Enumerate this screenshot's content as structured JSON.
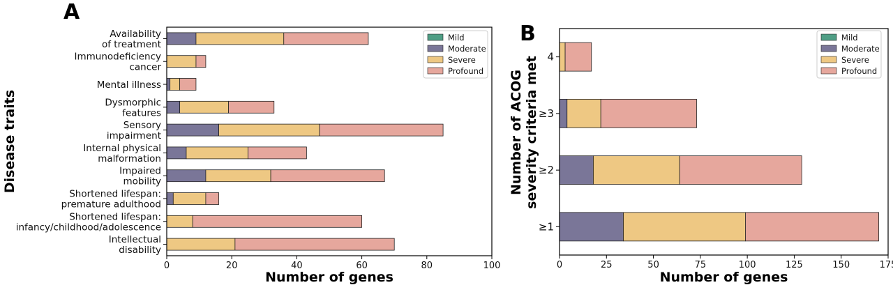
{
  "chart_data": [
    {
      "panel": "A",
      "type": "bar",
      "orientation": "horizontal",
      "stacked": true,
      "categories": [
        [
          "Availability",
          "of treatment"
        ],
        [
          "Immunodeficiency",
          "cancer"
        ],
        [
          "Mental illness"
        ],
        [
          "Dysmorphic",
          "features"
        ],
        [
          "Sensory",
          "impairment"
        ],
        [
          "Internal physical",
          "malformation"
        ],
        [
          "Impaired",
          "mobility"
        ],
        [
          "Shortened lifespan:",
          "premature adulthood"
        ],
        [
          "Shortened lifespan:",
          "infancy/childhood/adolescence"
        ],
        [
          "Intellectual",
          "disability"
        ]
      ],
      "series": [
        {
          "name": "Mild",
          "color": "#4f9e85",
          "values": [
            0,
            0,
            0,
            0,
            0,
            0,
            0,
            0,
            0,
            0
          ]
        },
        {
          "name": "Moderate",
          "color": "#7a7698",
          "values": [
            9,
            0,
            1,
            4,
            16,
            6,
            12,
            2,
            0,
            0
          ]
        },
        {
          "name": "Severe",
          "color": "#eec883",
          "values": [
            27,
            9,
            3,
            15,
            31,
            19,
            20,
            10,
            8,
            21
          ]
        },
        {
          "name": "Profound",
          "color": "#e6a79d",
          "values": [
            26,
            3,
            5,
            14,
            38,
            18,
            35,
            4,
            52,
            49
          ]
        }
      ],
      "xlabel": "Number of genes",
      "ylabel": "Disease traits",
      "xlim": [
        0,
        100
      ],
      "xticks": [
        0,
        20,
        40,
        60,
        80,
        100
      ],
      "legend": "top-right",
      "grid": false
    },
    {
      "panel": "B",
      "type": "bar",
      "orientation": "horizontal",
      "stacked": true,
      "categories": [
        [
          "4"
        ],
        [
          "≥3"
        ],
        [
          "≥2"
        ],
        [
          "≥1"
        ]
      ],
      "series": [
        {
          "name": "Mild",
          "color": "#4f9e85",
          "values": [
            0,
            0,
            0,
            0
          ]
        },
        {
          "name": "Moderate",
          "color": "#7a7698",
          "values": [
            0,
            4,
            18,
            34
          ]
        },
        {
          "name": "Severe",
          "color": "#eec883",
          "values": [
            3,
            18,
            46,
            65
          ]
        },
        {
          "name": "Profound",
          "color": "#e6a79d",
          "values": [
            14,
            51,
            65,
            71
          ]
        }
      ],
      "xlabel": "Number of genes",
      "ylabel": [
        "Number of ACOG",
        "severity criteria met"
      ],
      "xlim": [
        0,
        175
      ],
      "xticks": [
        0,
        25,
        50,
        75,
        100,
        125,
        150,
        175
      ],
      "legend": "top-right",
      "grid": false
    }
  ]
}
